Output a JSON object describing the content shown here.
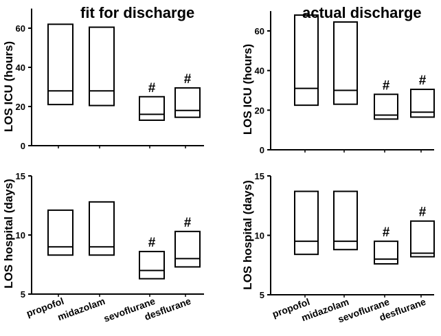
{
  "columns": [
    {
      "title": "fit for discharge"
    },
    {
      "title": "actual discharge"
    }
  ],
  "chart_data": [
    {
      "type": "box",
      "panel": "top-left",
      "column_title": "fit for discharge",
      "ylabel": "LOS ICU (hours)",
      "ylim": [
        0,
        70
      ],
      "yticks": [
        0,
        20,
        40,
        60
      ],
      "categories": [
        "propofol",
        "midazolam",
        "sevoflurane",
        "desflurane"
      ],
      "boxes": [
        {
          "category": "propofol",
          "low": 21,
          "median": 28,
          "high": 62,
          "mark": ""
        },
        {
          "category": "midazolam",
          "low": 20.5,
          "median": 28,
          "high": 60.5,
          "mark": ""
        },
        {
          "category": "sevoflurane",
          "low": 13,
          "median": 16,
          "high": 25,
          "mark": "#"
        },
        {
          "category": "desflurane",
          "low": 14.5,
          "median": 18,
          "high": 29.5,
          "mark": "#"
        }
      ]
    },
    {
      "type": "box",
      "panel": "top-right",
      "column_title": "actual discharge",
      "ylabel": "LOS ICU (hours)",
      "ylim": [
        0,
        70
      ],
      "yticks": [
        0,
        20,
        40,
        60
      ],
      "categories": [
        "propofol",
        "midazolam",
        "sevoflurane",
        "desflurane"
      ],
      "boxes": [
        {
          "category": "propofol",
          "low": 22.5,
          "median": 31,
          "high": 68,
          "mark": ""
        },
        {
          "category": "midazolam",
          "low": 23,
          "median": 30,
          "high": 64.5,
          "mark": ""
        },
        {
          "category": "sevoflurane",
          "low": 15.5,
          "median": 17.5,
          "high": 28,
          "mark": "#"
        },
        {
          "category": "desflurane",
          "low": 16.5,
          "median": 19,
          "high": 30.5,
          "mark": "#"
        }
      ]
    },
    {
      "type": "box",
      "panel": "bottom-left",
      "column_title": "fit for discharge",
      "ylabel": "LOS hospital (days)",
      "ylim": [
        5,
        15
      ],
      "yticks": [
        5,
        10,
        15
      ],
      "categories": [
        "propofol",
        "midazolam",
        "sevoflurane",
        "desflurane"
      ],
      "boxes": [
        {
          "category": "propofol",
          "low": 8.3,
          "median": 9.0,
          "high": 12.1,
          "mark": ""
        },
        {
          "category": "midazolam",
          "low": 8.3,
          "median": 9.0,
          "high": 12.8,
          "mark": ""
        },
        {
          "category": "sevoflurane",
          "low": 6.3,
          "median": 7.0,
          "high": 8.6,
          "mark": "#"
        },
        {
          "category": "desflurane",
          "low": 7.3,
          "median": 8.0,
          "high": 10.3,
          "mark": "#"
        }
      ]
    },
    {
      "type": "box",
      "panel": "bottom-right",
      "column_title": "actual discharge",
      "ylabel": "LOS hospital (days)",
      "ylim": [
        5,
        15
      ],
      "yticks": [
        5,
        10,
        15
      ],
      "categories": [
        "propofol",
        "midazolam",
        "sevoflurane",
        "desflurane"
      ],
      "boxes": [
        {
          "category": "propofol",
          "low": 8.4,
          "median": 9.5,
          "high": 13.7,
          "mark": ""
        },
        {
          "category": "midazolam",
          "low": 8.8,
          "median": 9.5,
          "high": 13.7,
          "mark": ""
        },
        {
          "category": "sevoflurane",
          "low": 7.6,
          "median": 8.0,
          "high": 9.5,
          "mark": "#"
        },
        {
          "category": "desflurane",
          "low": 8.2,
          "median": 8.5,
          "high": 11.2,
          "mark": "#"
        }
      ]
    }
  ]
}
